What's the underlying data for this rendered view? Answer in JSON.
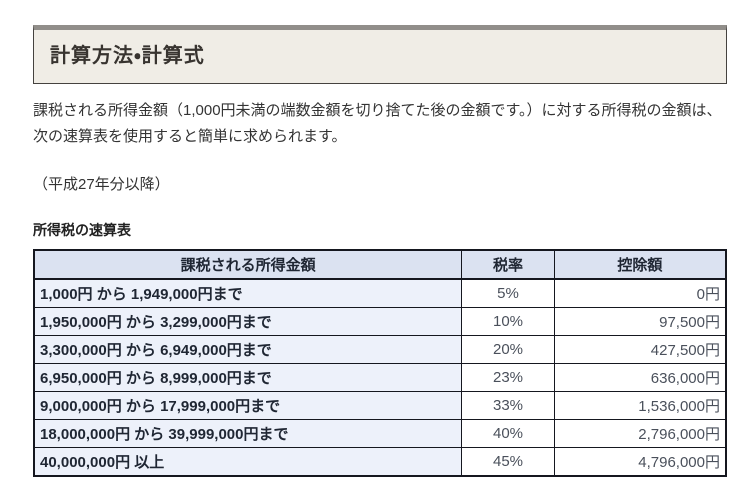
{
  "page": {
    "title": "計算方法・計算式",
    "intro": "課税される所得金額（1,000円未満の端数金額を切り捨てた後の金額です。）に対する所得税の金額は、次の速算表を使用すると簡単に求められます。",
    "period_note": "（平成27年分以降）",
    "table_caption": "所得税の速算表"
  },
  "colors": {
    "heading_box_background": "#f0ede6",
    "heading_box_top_bar": "#918e8a",
    "table_border": "#15171f",
    "table_header_background": "#dbe2f1",
    "table_first_column_background": "#edf1fa",
    "body_text": "#333333",
    "numeric_text": "#4a505b"
  },
  "chart_data": {
    "type": "table",
    "title": "所得税の速算表",
    "columns": [
      "課税される所得金額",
      "税率",
      "控除額"
    ],
    "rows": [
      {
        "income_range": "1,000円 から 1,949,000円まで",
        "rate": "5%",
        "deduction": "0円"
      },
      {
        "income_range": "1,950,000円 から 3,299,000円まで",
        "rate": "10%",
        "deduction": "97,500円"
      },
      {
        "income_range": "3,300,000円 から 6,949,000円まで",
        "rate": "20%",
        "deduction": "427,500円"
      },
      {
        "income_range": "6,950,000円 から 8,999,000円まで",
        "rate": "23%",
        "deduction": "636,000円"
      },
      {
        "income_range": "9,000,000円 から 17,999,000円まで",
        "rate": "33%",
        "deduction": "1,536,000円"
      },
      {
        "income_range": "18,000,000円 から 39,999,000円まで",
        "rate": "40%",
        "deduction": "2,796,000円"
      },
      {
        "income_range": "40,000,000円 以上",
        "rate": "45%",
        "deduction": "4,796,000円"
      }
    ]
  }
}
